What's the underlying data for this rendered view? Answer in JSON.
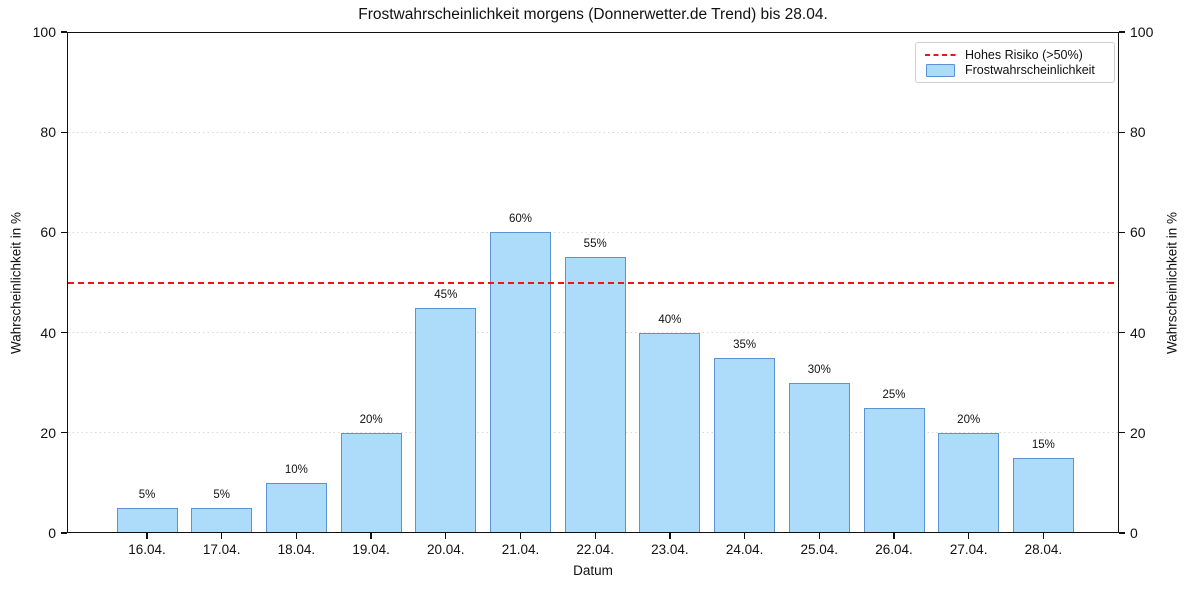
{
  "title": "Frostwahrscheinlichkeit morgens (Donnerwetter.de Trend) bis 28.04.",
  "axes": {
    "x_label": "Datum",
    "y_label_left": "Wahrscheinlichkeit in %",
    "y_label_right": "Wahrscheinlichkeit in %",
    "y_ticks": [
      0,
      20,
      40,
      60,
      80,
      100
    ]
  },
  "legend": {
    "items": [
      {
        "label": "Hohes Risiko (>50%)",
        "type": "dashed-line",
        "color": "#f01515"
      },
      {
        "label": "Frostwahrscheinlichkeit",
        "type": "patch",
        "fill": "#acdcfa",
        "edge": "#5c93d6"
      }
    ]
  },
  "colors": {
    "bar_fill": "#acdcfa",
    "bar_edge": "#5c93d6",
    "risk_line": "#f01515",
    "gridline": "#d9d9d9",
    "spine": "#111111"
  },
  "chart_data": {
    "type": "bar",
    "title": "Frostwahrscheinlichkeit morgens (Donnerwetter.de Trend) bis 28.04.",
    "xlabel": "Datum",
    "ylabel": "Wahrscheinlichkeit in %",
    "ylim": [
      0,
      100
    ],
    "grid": "horizontal dotted at 20/40/60/80",
    "legend_position": "upper right",
    "categories": [
      "16.04.",
      "17.04.",
      "18.04.",
      "19.04.",
      "20.04.",
      "21.04.",
      "22.04.",
      "23.04.",
      "24.04.",
      "25.04.",
      "26.04.",
      "27.04.",
      "28.04."
    ],
    "values": [
      5,
      5,
      10,
      20,
      45,
      60,
      55,
      40,
      35,
      30,
      25,
      20,
      15
    ],
    "bar_labels": [
      "5%",
      "5%",
      "10%",
      "20%",
      "45%",
      "60%",
      "55%",
      "40%",
      "35%",
      "30%",
      "25%",
      "20%",
      "15%"
    ],
    "reference_line": {
      "y": 50,
      "label": "Hohes Risiko (>50%)",
      "linestyle": "dashed",
      "color": "red"
    }
  }
}
